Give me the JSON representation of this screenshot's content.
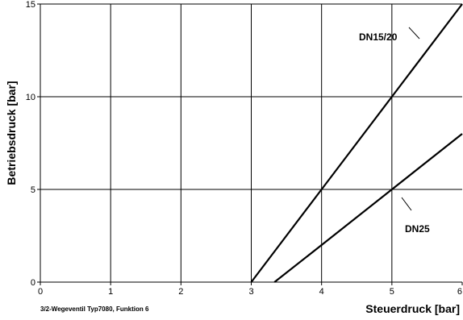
{
  "chart_data": {
    "type": "line",
    "xlabel": "Steuerdruck [bar]",
    "ylabel": "Betriebsdruck [bar]",
    "caption": "3/2-Wegeventil Typ7080,  Funktion 6",
    "xlim": [
      0,
      6
    ],
    "ylim": [
      0,
      15
    ],
    "x_ticks": [
      "0",
      "1",
      "2",
      "3",
      "4",
      "5",
      "6"
    ],
    "y_ticks": [
      "0",
      "5",
      "10",
      "15"
    ],
    "grid": true,
    "series": [
      {
        "name": "DN15/20",
        "x": [
          3,
          4,
          5,
          6
        ],
        "y": [
          0,
          5,
          10,
          15
        ]
      },
      {
        "name": "DN25",
        "x": [
          3.33,
          4,
          5,
          6
        ],
        "y": [
          0,
          2,
          5,
          8
        ]
      }
    ],
    "colors": {
      "lines": "#000000",
      "grid": "#000000"
    }
  }
}
